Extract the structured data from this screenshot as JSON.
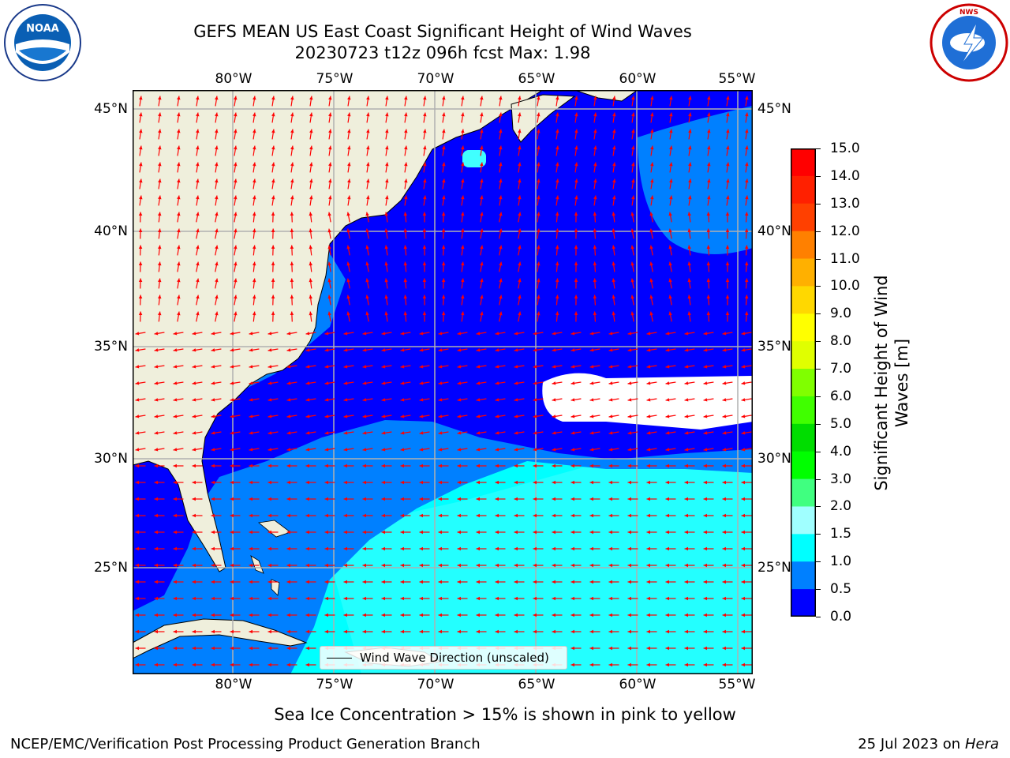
{
  "figure": {
    "title_line1": "GEFS MEAN US East Coast Significant Height of Wind Waves",
    "title_line2": "20230723 t12z 096h fcst   Max: 1.98",
    "subtitle": "Sea Ice Concentration > 15% is shown in pink to yellow",
    "footer_left": "NCEP/EMC/Verification Post Processing Product Generation Branch",
    "footer_right_date": "25 Jul 2023 on ",
    "footer_right_machine": "Hera",
    "legend_label": "Wind Wave Direction (unscaled)"
  },
  "logos": {
    "left": {
      "name": "noaa-logo",
      "text": "NOAA"
    },
    "right": {
      "name": "nws-logo",
      "text": "NATIONAL WEATHER SERVICE"
    }
  },
  "map": {
    "lon_ticks": [
      "80°W",
      "75°W",
      "70°W",
      "65°W",
      "60°W",
      "55°W"
    ],
    "lat_ticks": [
      "45°N",
      "40°N",
      "35°N",
      "30°N",
      "25°N"
    ],
    "land_color": "#efefdc",
    "ocean_colors": {
      "0.0-0.5": "#0000ff",
      "0.5-1.0": "#0080ff",
      "1.0-1.5": "#00ffff",
      "1.5-2.0": "#40ffff",
      "missing": "#ffffff"
    },
    "arrow_color": "#ff0000"
  },
  "colorbar": {
    "label_line1": "Significant Height of Wind",
    "label_line2": "Waves [m]",
    "ticks": [
      "15.0",
      "14.0",
      "13.0",
      "12.0",
      "11.0",
      "10.0",
      "9.0",
      "8.0",
      "7.0",
      "6.0",
      "5.0",
      "4.0",
      "3.0",
      "2.0",
      "1.5",
      "1.0",
      "0.5",
      "0.0"
    ],
    "colors_top_to_bottom": [
      "#ff0000",
      "#ff2000",
      "#ff4000",
      "#ff6000",
      "#ff8000",
      "#ffb000",
      "#ffd800",
      "#ffff00",
      "#e0ff00",
      "#c0ff00",
      "#80ff00",
      "#40ff00",
      "#00dd00",
      "#00ff00",
      "#40ff80",
      "#a0ffff",
      "#60ffff",
      "#00ffff",
      "#0080ff",
      "#0000ff"
    ]
  }
}
